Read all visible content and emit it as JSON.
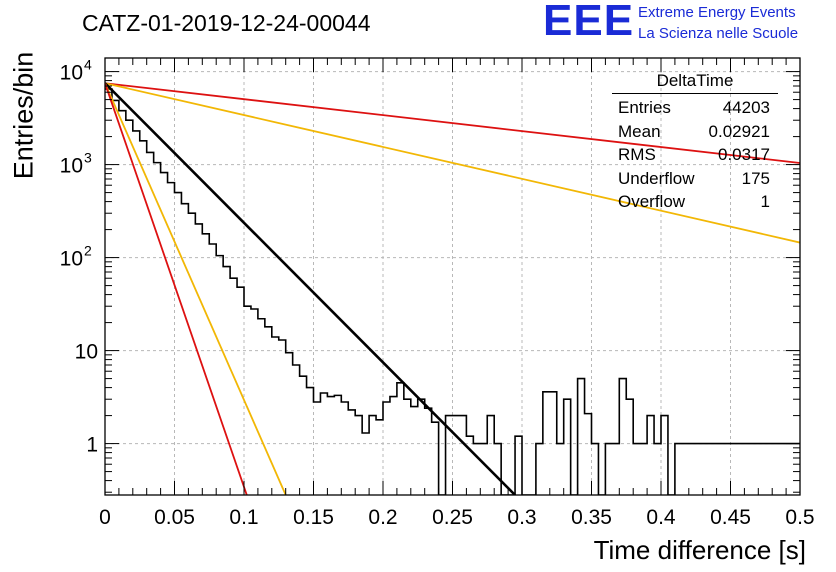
{
  "header": {
    "title": "CATZ-01-2019-12-24-00044",
    "logo_text": "EEE",
    "logo_line1": "Extreme Energy Events",
    "logo_line2": "La Scienza nelle Scuole"
  },
  "stats_box": {
    "title": "DeltaTime",
    "rows": [
      {
        "label": "Entries",
        "value": "44203"
      },
      {
        "label": "Mean",
        "value": "0.02921"
      },
      {
        "label": "RMS",
        "value": "0.0317"
      },
      {
        "label": "Underflow",
        "value": "175"
      },
      {
        "label": "Overflow",
        "value": "1"
      }
    ]
  },
  "colors": {
    "histogram": "#000000",
    "red": "#dd1111",
    "yellow": "#f2b705",
    "fit": "#000000",
    "grid": "#b8b8b8"
  },
  "chart_data": {
    "type": "line",
    "title": "CATZ-01-2019-12-24-00044",
    "xlabel": "Time difference [s]",
    "ylabel": "Entries/bin",
    "xlim": [
      0,
      0.5
    ],
    "ylim": [
      0.28,
      14000
    ],
    "yscale": "log",
    "grid": true,
    "x_ticks": [
      "0",
      "0.05",
      "0.1",
      "0.15",
      "0.2",
      "0.25",
      "0.3",
      "0.35",
      "0.4",
      "0.45",
      "0.5"
    ],
    "y_ticks": [
      {
        "value": 1,
        "label": "1"
      },
      {
        "value": 10,
        "label": "10"
      },
      {
        "value": 100,
        "label": "10",
        "sup": "2"
      },
      {
        "value": 1000,
        "label": "10",
        "sup": "3"
      },
      {
        "value": 10000,
        "label": "10",
        "sup": "4"
      }
    ],
    "histogram": {
      "bin_width": 0.005,
      "x_start": 0,
      "values": [
        6500,
        4900,
        3800,
        3000,
        2300,
        1800,
        1350,
        1050,
        820,
        640,
        500,
        380,
        300,
        230,
        180,
        140,
        105,
        80,
        60,
        48,
        30,
        28,
        22,
        18,
        14,
        13,
        9.5,
        7,
        5.3,
        4,
        2.8,
        3.5,
        3.2,
        3.3,
        2.8,
        2.3,
        2.0,
        1.3,
        2.0,
        1.8,
        2.8,
        3.2,
        4.5,
        3.0,
        2.5,
        3.0,
        2.4,
        1.7,
        0,
        2.0,
        2.0,
        2.0,
        1.2,
        1.0,
        1.0,
        2.0,
        1.0,
        0,
        0,
        1.2,
        0,
        0,
        1.0,
        3.6,
        3.6,
        1.0,
        3.0,
        0,
        5.0,
        2.1,
        1.0,
        0,
        1.0,
        1.0,
        5.0,
        3.0,
        1.0,
        1.0,
        2.0,
        1.0,
        2.0,
        0,
        1.0,
        1.0,
        1.0,
        1.0,
        1.0,
        1.0,
        1.0,
        1.0,
        1.0,
        1.0,
        1.0,
        1.0,
        1.0,
        1.0,
        1.0,
        1.0,
        1.0,
        1.0
      ]
    },
    "curves": [
      {
        "color": "red",
        "x": [
          0,
          0.5
        ],
        "y": [
          7500,
          1040
        ]
      },
      {
        "color": "yellow",
        "x": [
          0,
          0.5
        ],
        "y": [
          7500,
          145
        ]
      },
      {
        "color": "fit",
        "x": [
          0,
          0.295
        ],
        "y": [
          7500,
          0.28
        ]
      },
      {
        "color": "yellow",
        "x": [
          0,
          0.13
        ],
        "y": [
          7500,
          0.28
        ]
      },
      {
        "color": "red",
        "x": [
          0,
          0.102
        ],
        "y": [
          7500,
          0.28
        ]
      }
    ]
  }
}
